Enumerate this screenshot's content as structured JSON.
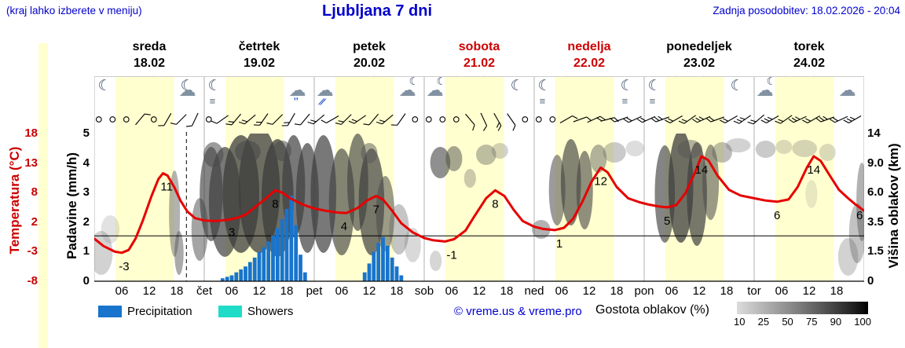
{
  "header": {
    "hint": "(kraj lahko izberete v meniju)",
    "title": "Ljubljana 7 dni",
    "updated": "Zadnja posodobitev: 18.02.2026 - 20:04"
  },
  "days": [
    {
      "name": "sreda",
      "date": "18.02",
      "red": false
    },
    {
      "name": "četrtek",
      "date": "19.02",
      "red": false
    },
    {
      "name": "petek",
      "date": "20.02",
      "red": false
    },
    {
      "name": "sobota",
      "date": "21.02",
      "red": true
    },
    {
      "name": "nedelja",
      "date": "22.02",
      "red": true
    },
    {
      "name": "ponedeljek",
      "date": "23.02",
      "red": false
    },
    {
      "name": "torek",
      "date": "24.02",
      "red": false
    }
  ],
  "axes": {
    "temp_label": "Temperatura (°C)",
    "temp_ticks": [
      "18",
      "13",
      "8",
      "2",
      "-3",
      "-8"
    ],
    "precip_label": "Padavine (mm/h)",
    "precip_ticks": [
      "5",
      "4",
      "3",
      "2",
      "1",
      "0"
    ],
    "cloud_label": "Višina oblakov (km)",
    "cloud_ticks": [
      "14",
      "9.0",
      "6.0",
      "3.5",
      "1.5",
      "0"
    ]
  },
  "x_labels": [
    "06",
    "12",
    "18",
    "čet",
    "06",
    "12",
    "18",
    "pet",
    "06",
    "12",
    "18",
    "sob",
    "06",
    "12",
    "18",
    "ned",
    "06",
    "12",
    "18",
    "pon",
    "06",
    "12",
    "18",
    "tor",
    "06",
    "12",
    "18"
  ],
  "legend": {
    "precipitation": "Precipitation",
    "showers": "Showers",
    "credit": "© vreme.us & vreme.pro",
    "cloud_density": "Gostota oblakov (%)",
    "cloud_scale": [
      "10",
      "25",
      "50",
      "75",
      "90",
      "100"
    ]
  },
  "colors": {
    "blue_text": "#0000cc",
    "red_text": "#cc0000",
    "temp_curve": "#e60000",
    "precip_bar": "#1874cd",
    "showers": "#1fdcc8",
    "day_band": "#ffffcf"
  },
  "chart_data": {
    "type": "line",
    "x_unit": "hours from 18.02 00:00, 0..168",
    "temp_axis": {
      "min": -8,
      "max": 18
    },
    "precip_axis_mm": {
      "min": 0,
      "max": 5
    },
    "cloud_axis_km": [
      "0",
      "1.5",
      "3.5",
      "6.0",
      "9.0",
      "14"
    ],
    "daylight_band_hours": [
      4.6,
      17.4
    ],
    "now_line_hour": 20.1,
    "temp_series": [
      [
        0,
        -0.5
      ],
      [
        2,
        -1.8
      ],
      [
        4.5,
        -2.8
      ],
      [
        6,
        -3
      ],
      [
        7.5,
        -2.5
      ],
      [
        9,
        -0.5
      ],
      [
        10.5,
        2.5
      ],
      [
        12.5,
        7
      ],
      [
        14,
        10
      ],
      [
        15,
        11
      ],
      [
        16,
        10.6
      ],
      [
        17.5,
        8.5
      ],
      [
        18.8,
        6.2
      ],
      [
        20.3,
        4.3
      ],
      [
        22,
        3.1
      ],
      [
        24,
        2.7
      ],
      [
        26.5,
        2.6
      ],
      [
        29,
        2.8
      ],
      [
        31,
        3.1
      ],
      [
        33,
        3.7
      ],
      [
        35,
        5
      ],
      [
        37.5,
        6.6
      ],
      [
        39.5,
        8
      ],
      [
        41,
        7.6
      ],
      [
        43,
        6.5
      ],
      [
        45.5,
        5.5
      ],
      [
        48,
        4.8
      ],
      [
        50.5,
        4.4
      ],
      [
        53,
        4.1
      ],
      [
        55,
        4
      ],
      [
        57.5,
        4.9
      ],
      [
        59.5,
        6.2
      ],
      [
        61.5,
        7
      ],
      [
        63,
        6.4
      ],
      [
        65,
        4.4
      ],
      [
        67,
        2.2
      ],
      [
        69.5,
        0.6
      ],
      [
        72,
        -0.4
      ],
      [
        74,
        -0.8
      ],
      [
        76.5,
        -1
      ],
      [
        78.5,
        -0.6
      ],
      [
        81,
        0.9
      ],
      [
        83,
        3.5
      ],
      [
        85.5,
        6.6
      ],
      [
        87.5,
        8
      ],
      [
        89.5,
        7
      ],
      [
        91.5,
        4.6
      ],
      [
        93.5,
        2.6
      ],
      [
        96,
        1.6
      ],
      [
        98,
        1.2
      ],
      [
        100.5,
        1
      ],
      [
        102.5,
        1.4
      ],
      [
        104.5,
        3
      ],
      [
        106.5,
        6
      ],
      [
        108.5,
        9.5
      ],
      [
        110.5,
        12
      ],
      [
        112,
        11.2
      ],
      [
        114,
        8.6
      ],
      [
        116.5,
        6.6
      ],
      [
        119,
        5.9
      ],
      [
        121,
        5.5
      ],
      [
        123,
        5.2
      ],
      [
        125,
        5
      ],
      [
        127,
        5.4
      ],
      [
        129,
        7.5
      ],
      [
        131,
        11
      ],
      [
        132.5,
        14
      ],
      [
        134,
        13.3
      ],
      [
        136,
        10.6
      ],
      [
        138.5,
        8.1
      ],
      [
        141,
        7.1
      ],
      [
        144,
        6.6
      ],
      [
        146.5,
        6.2
      ],
      [
        149,
        6
      ],
      [
        151.5,
        6.4
      ],
      [
        153.5,
        8.6
      ],
      [
        155.5,
        12
      ],
      [
        157,
        14
      ],
      [
        158.5,
        13.2
      ],
      [
        160.5,
        10.6
      ],
      [
        162.5,
        8.1
      ],
      [
        164.5,
        6.6
      ],
      [
        166,
        5.6
      ],
      [
        168,
        4.4
      ]
    ],
    "temp_point_labels": [
      [
        6.5,
        -3
      ],
      [
        15.8,
        11
      ],
      [
        30,
        3
      ],
      [
        39.5,
        8
      ],
      [
        54.5,
        4
      ],
      [
        61.5,
        7
      ],
      [
        78,
        -1
      ],
      [
        87.5,
        8
      ],
      [
        101.5,
        1
      ],
      [
        110.5,
        12
      ],
      [
        125,
        5
      ],
      [
        132.5,
        14
      ],
      [
        149,
        6
      ],
      [
        157,
        14
      ],
      [
        167,
        6
      ]
    ],
    "precip_bars_mm": [
      [
        28,
        0.1
      ],
      [
        29,
        0.15
      ],
      [
        30,
        0.2
      ],
      [
        31,
        0.3
      ],
      [
        32,
        0.4
      ],
      [
        33,
        0.5
      ],
      [
        34,
        0.65
      ],
      [
        35,
        0.8
      ],
      [
        36,
        1.0
      ],
      [
        37,
        1.15
      ],
      [
        38,
        1.35
      ],
      [
        39,
        1.55
      ],
      [
        40,
        1.8
      ],
      [
        41,
        2.1
      ],
      [
        42,
        2.45
      ],
      [
        43,
        2.9
      ],
      [
        44,
        1.9
      ],
      [
        45,
        0.9
      ],
      [
        46,
        0.3
      ],
      [
        59,
        0.3
      ],
      [
        60,
        0.6
      ],
      [
        61,
        1.0
      ],
      [
        62,
        1.3
      ],
      [
        63,
        1.5
      ],
      [
        64,
        1.2
      ],
      [
        65,
        0.8
      ],
      [
        66,
        0.5
      ],
      [
        67,
        0.2
      ]
    ],
    "cloud_blobs": [
      [
        1.5,
        225,
        2.5,
        28,
        0.3,
        "#6a6a6a"
      ],
      [
        3.5,
        195,
        2.0,
        18,
        0.22,
        "#7a7a7a"
      ],
      [
        17.5,
        175,
        1.2,
        55,
        0.45,
        "#555555"
      ],
      [
        18.5,
        225,
        1.0,
        28,
        0.5,
        "#555555"
      ],
      [
        23,
        195,
        1.8,
        40,
        0.5,
        "#4a4a4a"
      ],
      [
        25.5,
        150,
        2.5,
        60,
        0.65,
        "#424242"
      ],
      [
        28.5,
        160,
        3.5,
        70,
        0.7,
        "#3e3e3e"
      ],
      [
        32,
        150,
        4.0,
        75,
        0.75,
        "#3c3c3c"
      ],
      [
        36,
        145,
        4.5,
        80,
        0.75,
        "#3c3c3c"
      ],
      [
        40,
        155,
        3.5,
        75,
        0.75,
        "#3c3c3c"
      ],
      [
        43.5,
        140,
        2.5,
        65,
        0.7,
        "#3e3e3e"
      ],
      [
        46.5,
        155,
        2.5,
        70,
        0.7,
        "#3e3e3e"
      ],
      [
        26,
        100,
        2.2,
        16,
        0.55,
        "#4a4a4a"
      ],
      [
        33.5,
        96,
        2.8,
        14,
        0.6,
        "#4a4a4a"
      ],
      [
        41,
        95,
        2.0,
        13,
        0.55,
        "#4a4a4a"
      ],
      [
        50,
        150,
        2.8,
        75,
        0.7,
        "#3e3e3e"
      ],
      [
        54,
        160,
        2.8,
        68,
        0.65,
        "#424242"
      ],
      [
        57.5,
        135,
        2.3,
        62,
        0.65,
        "#424242"
      ],
      [
        60.5,
        160,
        2.8,
        68,
        0.7,
        "#3e3e3e"
      ],
      [
        63.5,
        175,
        2.0,
        48,
        0.55,
        "#4a4a4a"
      ],
      [
        60,
        98,
        1.8,
        13,
        0.5,
        "#555555"
      ],
      [
        66.5,
        195,
        2.2,
        32,
        0.38,
        "#666666"
      ],
      [
        69.5,
        215,
        1.8,
        22,
        0.28,
        "#777777"
      ],
      [
        74.5,
        235,
        1.3,
        13,
        0.3,
        "#777777"
      ],
      [
        75.5,
        110,
        2.2,
        20,
        0.6,
        "#454545"
      ],
      [
        78.5,
        105,
        1.8,
        16,
        0.5,
        "#4e4e4e"
      ],
      [
        82,
        130,
        1.3,
        12,
        0.35,
        "#666666"
      ],
      [
        85.5,
        100,
        2.2,
        13,
        0.4,
        "#5a5a5a"
      ],
      [
        88.5,
        95,
        1.8,
        10,
        0.3,
        "#6a6a6a"
      ],
      [
        97.5,
        195,
        2.0,
        12,
        0.45,
        "#555555"
      ],
      [
        101,
        145,
        1.8,
        45,
        0.55,
        "#484848"
      ],
      [
        104,
        135,
        2.2,
        55,
        0.65,
        "#424242"
      ],
      [
        107,
        145,
        1.8,
        50,
        0.6,
        "#454545"
      ],
      [
        110,
        105,
        1.8,
        18,
        0.45,
        "#555555"
      ],
      [
        113.5,
        97,
        2.5,
        13,
        0.35,
        "#666666"
      ],
      [
        118,
        92,
        2.0,
        10,
        0.25,
        "#777777"
      ],
      [
        124.5,
        150,
        2.2,
        62,
        0.65,
        "#424242"
      ],
      [
        128,
        140,
        2.7,
        72,
        0.75,
        "#3c3c3c"
      ],
      [
        131.5,
        150,
        2.2,
        66,
        0.7,
        "#3e3e3e"
      ],
      [
        134.5,
        135,
        1.8,
        48,
        0.55,
        "#484848"
      ],
      [
        130,
        93,
        2.7,
        12,
        0.45,
        "#555555"
      ],
      [
        137,
        97,
        2.2,
        13,
        0.4,
        "#5a5a5a"
      ],
      [
        140.5,
        88,
        2.7,
        9,
        0.3,
        "#6a6a6a"
      ],
      [
        146.5,
        93,
        2.2,
        11,
        0.35,
        "#666666"
      ],
      [
        150.5,
        90,
        1.8,
        9,
        0.27,
        "#777777"
      ],
      [
        155,
        92,
        2.7,
        11,
        0.3,
        "#6f6f6f"
      ],
      [
        160,
        97,
        1.8,
        11,
        0.27,
        "#777777"
      ],
      [
        156.5,
        150,
        1.3,
        18,
        0.2,
        "#888888"
      ],
      [
        164.5,
        230,
        2.2,
        24,
        0.3,
        "#6a6a6a"
      ],
      [
        166.5,
        200,
        1.8,
        38,
        0.38,
        "#5e5e5e"
      ],
      [
        167.5,
        160,
        1.2,
        50,
        0.45,
        "#555555"
      ]
    ],
    "wind": [
      "c",
      "c",
      "c",
      "b:40:1",
      "c",
      "b:210:1",
      "b:225:1",
      "b:205:1",
      "c",
      "b:235:1",
      "b:220:2",
      "b:230:2",
      "b:215:2",
      "b:225:1",
      "b:210:2",
      "b:220:1",
      "b:230:2",
      "b:240:1",
      "b:225:2",
      "b:235:2",
      "b:220:1",
      "b:230:2",
      "b:215:1",
      "c",
      "c",
      "c",
      "c",
      "b:140:1",
      "b:155:1",
      "b:150:2",
      "b:145:1",
      "c",
      "c",
      "c",
      "b:60:1",
      "b:70:1",
      "b:65:2",
      "b:75:1",
      "b:250:1",
      "b:245:2",
      "b:245:2",
      "b:250:3",
      "b:240:2",
      "b:235:2",
      "b:245:3",
      "b:250:2",
      "b:240:2",
      "b:235:3",
      "b:230:2",
      "b:240:3",
      "b:235:2",
      "b:245:3",
      "b:240:2",
      "b:250:3",
      "b:245:2",
      "b:240:3"
    ],
    "weather_icons": [
      "moon",
      "sun",
      "sun-cloud",
      "moon-cloud",
      "moon-fog",
      "cloud-drizzle",
      "cloud-rain",
      "cloud-drizzle",
      "cloud-rain",
      "cloud-rain",
      "cloud-sun-rain",
      "cloud-moon",
      "cloud-moon",
      "sun-cloud",
      "sun-cloud",
      "moon",
      "moon-fog",
      "sun-cloud",
      "sun",
      "moon-fog",
      "moon-fog",
      "sun-cloud",
      "sun-cloud",
      "moon",
      "cloud-moon",
      "sun-cloud",
      "sun-cloud",
      "cloud"
    ]
  }
}
